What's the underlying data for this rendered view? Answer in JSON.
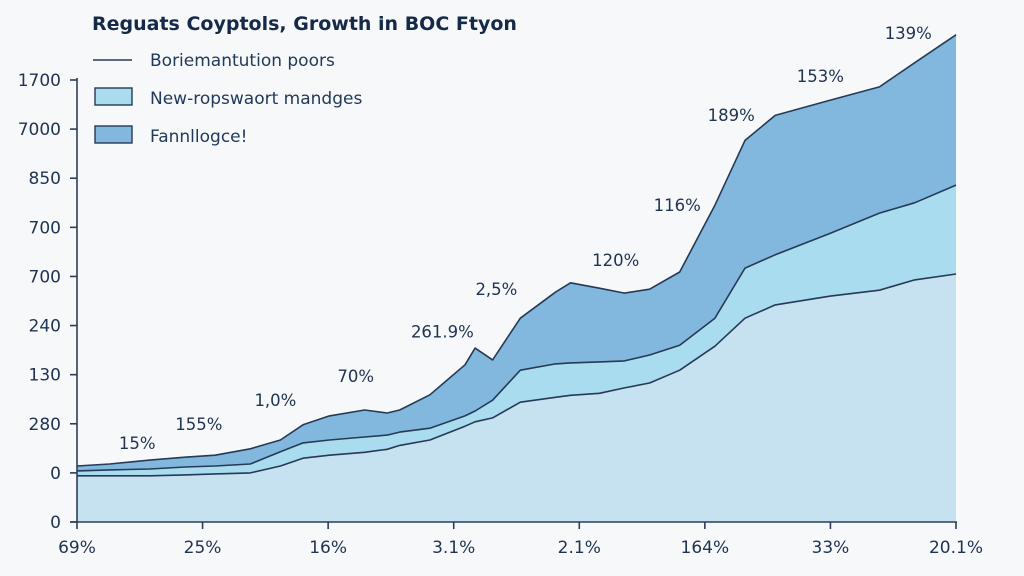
{
  "chart_data": {
    "type": "area",
    "stacked": true,
    "title": "Reguats Coyptols, Growth in BOC Ftyon",
    "xlabel": "",
    "ylabel": "",
    "grid": false,
    "legend_position": "top-left",
    "xlim": [
      0,
      7
    ],
    "ylim": [
      0,
      1000
    ],
    "x_ticks": [
      {
        "value": 0,
        "label": "69%"
      },
      {
        "value": 1,
        "label": "25%"
      },
      {
        "value": 2,
        "label": "16%"
      },
      {
        "value": 3,
        "label": "3.1%"
      },
      {
        "value": 4,
        "label": "2.1%"
      },
      {
        "value": 5,
        "label": "164%"
      },
      {
        "value": 6,
        "label": "33%"
      },
      {
        "value": 7,
        "label": "20.1%"
      }
    ],
    "y_ticks": [
      {
        "value": 900,
        "label": "1700"
      },
      {
        "value": 800,
        "label": "7000"
      },
      {
        "value": 700,
        "label": "850"
      },
      {
        "value": 600,
        "label": "700"
      },
      {
        "value": 500,
        "label": "700"
      },
      {
        "value": 400,
        "label": "240"
      },
      {
        "value": 300,
        "label": "130"
      },
      {
        "value": 200,
        "label": "280"
      },
      {
        "value": 100,
        "label": "0"
      },
      {
        "value": 0,
        "label": "0"
      }
    ],
    "x": [
      0,
      0.26,
      0.58,
      0.86,
      1.1,
      1.38,
      1.62,
      1.8,
      2.01,
      2.29,
      2.47,
      2.57,
      2.81,
      3.09,
      3.17,
      3.31,
      3.53,
      3.81,
      3.93,
      4.16,
      4.36,
      4.56,
      4.8,
      5.08,
      5.32,
      5.56,
      6.0,
      6.39,
      6.67,
      7.0
    ],
    "series": [
      {
        "name": "Base layer",
        "color": "#c6e1ef",
        "values": [
          94,
          94,
          94,
          96,
          98,
          100,
          114,
          130,
          136,
          142,
          148,
          156,
          167,
          195,
          204,
          212,
          244,
          254,
          258,
          262,
          273,
          283,
          309,
          358,
          415,
          442,
          460,
          472,
          493,
          505
        ]
      },
      {
        "name": "New-ropswaort mandges",
        "color": "#a8dcee",
        "values": [
          10,
          12,
          14,
          16,
          16,
          18,
          29,
          31,
          31,
          31,
          29,
          27,
          24,
          21,
          22,
          36,
          65,
          68,
          66,
          64,
          55,
          57,
          51,
          57,
          102,
          102,
          128,
          157,
          157,
          181
        ]
      },
      {
        "name": "Fannllogce!",
        "color": "#82b8de",
        "values": [
          10,
          12,
          18,
          20,
          22,
          31,
          24,
          37,
          49,
          55,
          45,
          45,
          68,
          104,
          128,
          82,
          106,
          146,
          163,
          150,
          138,
          134,
          149,
          230,
          260,
          284,
          271,
          257,
          285,
          306
        ]
      }
    ],
    "legend": [
      {
        "type": "line",
        "label": "Boriemantution poors",
        "color": "#263a55"
      },
      {
        "type": "swatch",
        "label": "New-ropswaort mandges",
        "color": "#a8dcee"
      },
      {
        "type": "swatch",
        "label": "Fannllogce!",
        "color": "#82b8de"
      }
    ],
    "annotations": [
      {
        "text": "15%",
        "x": 0.48,
        "y": 161
      },
      {
        "text": "155%",
        "x": 0.97,
        "y": 200
      },
      {
        "text": "1,0%",
        "x": 1.58,
        "y": 248
      },
      {
        "text": "70%",
        "x": 2.22,
        "y": 297
      },
      {
        "text": "261.9%",
        "x": 2.91,
        "y": 388
      },
      {
        "text": "2,5%",
        "x": 3.34,
        "y": 474
      },
      {
        "text": "120%",
        "x": 4.29,
        "y": 533
      },
      {
        "text": "116%",
        "x": 4.78,
        "y": 645
      },
      {
        "text": "189%",
        "x": 5.21,
        "y": 829
      },
      {
        "text": "153%",
        "x": 5.92,
        "y": 908
      },
      {
        "text": "139%",
        "x": 6.62,
        "y": 996
      }
    ],
    "line_color": "#263a55"
  }
}
